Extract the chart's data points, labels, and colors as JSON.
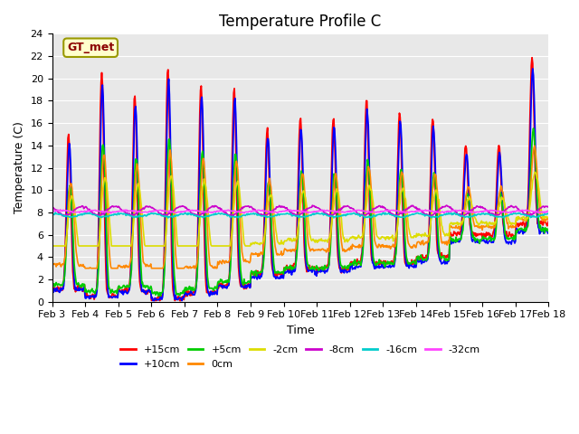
{
  "title": "Temperature Profile C",
  "xlabel": "Time",
  "ylabel": "Temperature (C)",
  "annotation": "GT_met",
  "ylim": [
    0,
    24
  ],
  "series_labels": [
    "+15cm",
    "+10cm",
    "+5cm",
    "0cm",
    "-2cm",
    "-8cm",
    "-16cm",
    "-32cm"
  ],
  "series_colors": [
    "#ff0000",
    "#0000ff",
    "#00cc00",
    "#ff8800",
    "#dddd00",
    "#cc00cc",
    "#00cccc",
    "#ff44ff"
  ],
  "x_ticks": [
    "Feb 3",
    "Feb 4",
    "Feb 5",
    "Feb 6",
    "Feb 7",
    "Feb 8",
    "Feb 9",
    "Feb 10",
    "Feb 11",
    "Feb 12",
    "Feb 13",
    "Feb 14",
    "Feb 15",
    "Feb 16",
    "Feb 17",
    "Feb 18"
  ],
  "background_color": "#e8e8e8",
  "title_fontsize": 12,
  "axis_fontsize": 9,
  "tick_fontsize": 8
}
